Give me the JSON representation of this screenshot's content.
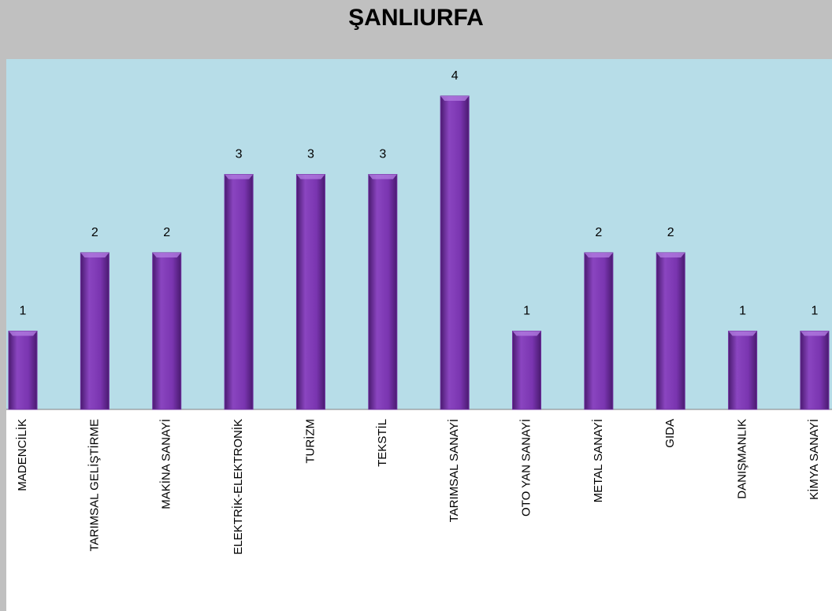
{
  "chart_data": {
    "type": "bar",
    "title": "ŞANLIURFA",
    "categories": [
      "MADENCİLİK",
      "TARIMSAL GELİŞTİRME",
      "MAKİNA SANAYİ",
      "ELEKTRİK-ELEKTRONİK",
      "TURİZM",
      "TEKSTİL",
      "TARIMSAL SANAYİ",
      "OTO YAN SANAYİ",
      "METAL SANAYİ",
      "GIDA",
      "DANIŞMANLIK",
      "KİMYA SANAYİ"
    ],
    "values": [
      1,
      2,
      2,
      3,
      3,
      3,
      4,
      1,
      2,
      2,
      1,
      1
    ],
    "color": "#7030a0"
  }
}
